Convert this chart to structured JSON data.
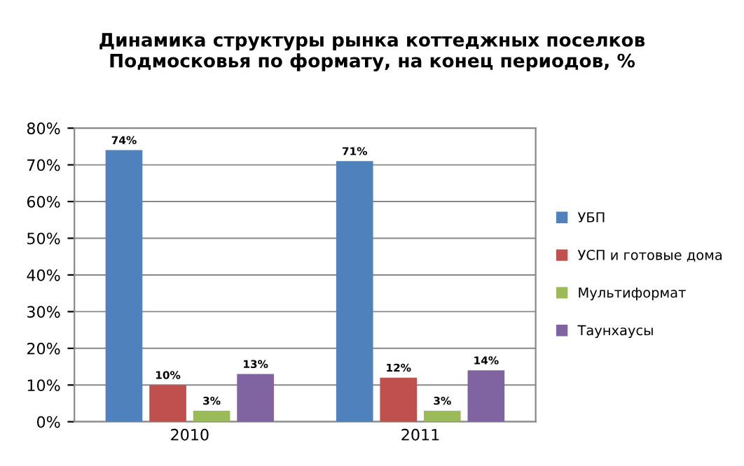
{
  "chart_data": {
    "type": "bar",
    "title": "Динамика структуры рынка коттеджных поселков\nПодмосковья по формату, на конец периодов, %",
    "categories": [
      "2010",
      "2011"
    ],
    "series": [
      {
        "name": "УБП",
        "color": "#4f81bd",
        "values": [
          74,
          71
        ],
        "value_labels": [
          "74%",
          "71%"
        ]
      },
      {
        "name": "УСП и готовые дома",
        "color": "#c0504d",
        "values": [
          10,
          12
        ],
        "value_labels": [
          "10%",
          "12%"
        ]
      },
      {
        "name": "Мультиформат",
        "color": "#9bbb59",
        "values": [
          3,
          3
        ],
        "value_labels": [
          "3%",
          "3%"
        ]
      },
      {
        "name": "Таунхаусы",
        "color": "#8064a2",
        "values": [
          13,
          14
        ],
        "value_labels": [
          "13%",
          "14%"
        ]
      }
    ],
    "ylim": [
      0,
      80
    ],
    "yticks": [
      {
        "value": 0,
        "label": "0%"
      },
      {
        "value": 10,
        "label": "10%"
      },
      {
        "value": 20,
        "label": "20%"
      },
      {
        "value": 30,
        "label": "30%"
      },
      {
        "value": 40,
        "label": "40%"
      },
      {
        "value": 50,
        "label": "50%"
      },
      {
        "value": 60,
        "label": "60%"
      },
      {
        "value": 70,
        "label": "70%"
      },
      {
        "value": 80,
        "label": "80%"
      }
    ],
    "grid": "y",
    "legend": "right"
  }
}
